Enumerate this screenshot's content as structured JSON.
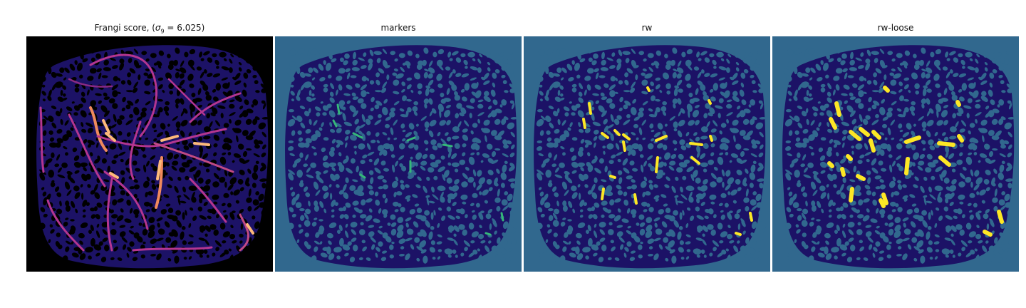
{
  "figure": {
    "panels": [
      {
        "title_prefix": "Frangi score, (",
        "title_sigma_symbol": "σ",
        "title_sigma_sub": "9",
        "title_suffix": " = 6.025)",
        "colormap": "magma"
      },
      {
        "title": "markers",
        "colormap": "viridis"
      },
      {
        "title": "rw",
        "colormap": "viridis"
      },
      {
        "title": "rw-loose",
        "colormap": "viridis"
      }
    ]
  },
  "colors": {
    "frangi_background": "#000000",
    "frangi_tissue": "#1c1266",
    "frangi_vessel": "#b43690",
    "frangi_vessel_hot": "#fdb97a",
    "seg_background": "#31688e",
    "seg_tissue": "#440154",
    "seg_marker": "#35b779",
    "seg_region": "#fde725"
  }
}
